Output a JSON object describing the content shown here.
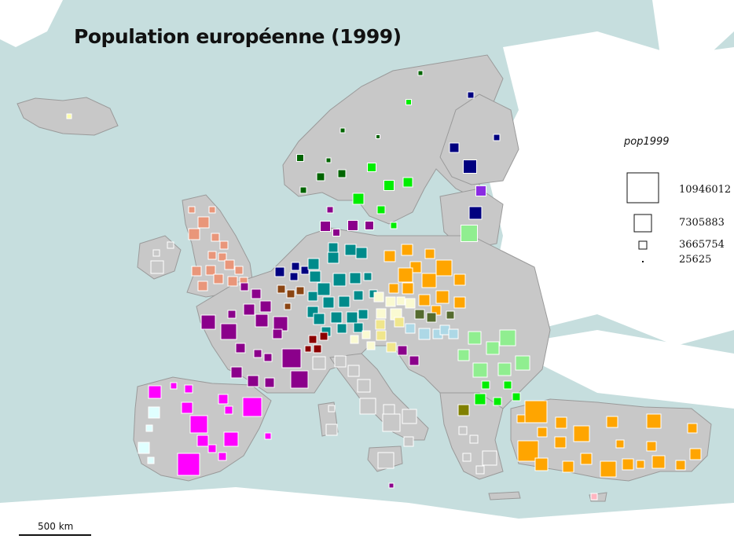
{
  "title": "Population européenne (1999)",
  "legend": {
    "variable": "pop1999",
    "entries": [
      {
        "value": "10946012"
      },
      {
        "value": "7305883"
      },
      {
        "value": "3665754"
      },
      {
        "value": "25625"
      }
    ]
  },
  "scale_bar": {
    "label": "500 km"
  },
  "colors": {
    "sea": "#c6dede",
    "land": "#c8c8c8",
    "border": "#9a9a9a"
  }
}
